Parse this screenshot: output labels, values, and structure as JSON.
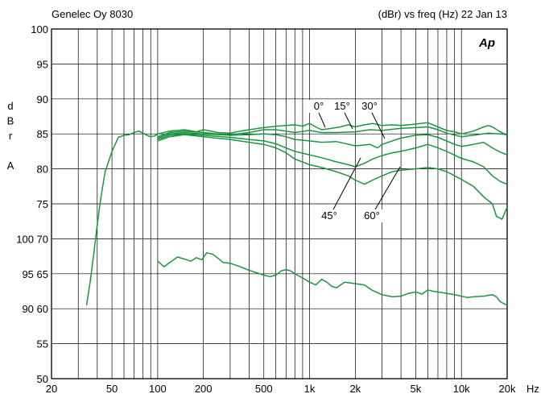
{
  "header": {
    "left_title": "Genelec Oy 8030",
    "right_title": "(dBr) vs freq (Hz) 22 Jan 13",
    "logo": "Ap"
  },
  "chart_data": {
    "type": "line",
    "x_scale": "log",
    "xlim": [
      20,
      20000
    ],
    "ylim": [
      50,
      100
    ],
    "grid": true,
    "x_ticks": [
      {
        "value": 20,
        "label": "20"
      },
      {
        "value": 50,
        "label": "50"
      },
      {
        "value": 100,
        "label": "100"
      },
      {
        "value": 200,
        "label": "200"
      },
      {
        "value": 500,
        "label": "500"
      },
      {
        "value": 1000,
        "label": "1k"
      },
      {
        "value": 2000,
        "label": "2k"
      },
      {
        "value": 5000,
        "label": "5k"
      },
      {
        "value": 10000,
        "label": "10k"
      },
      {
        "value": 20000,
        "label": "20k"
      }
    ],
    "x_unit": "Hz",
    "y_ticks": [
      {
        "value": 100,
        "label": "100"
      },
      {
        "value": 95,
        "label": "95"
      },
      {
        "value": 90,
        "label": "90"
      },
      {
        "value": 85,
        "label": "85"
      },
      {
        "value": 80,
        "label": "80"
      },
      {
        "value": 75,
        "label": "75"
      },
      {
        "value": 70,
        "label": "100 70"
      },
      {
        "value": 65,
        "label": "95  65"
      },
      {
        "value": 60,
        "label": "90  60"
      },
      {
        "value": 55,
        "label": "55"
      },
      {
        "value": 50,
        "label": "50"
      }
    ],
    "ylabel_chars": [
      "d",
      "B",
      "r",
      "",
      "A"
    ],
    "line_color": "#1a9641",
    "series": [
      {
        "name": "0°",
        "points": [
          [
            34,
            60.5
          ],
          [
            36,
            64
          ],
          [
            38,
            68
          ],
          [
            40,
            72
          ],
          [
            42,
            75.5
          ],
          [
            45,
            79.5
          ],
          [
            50,
            82.5
          ],
          [
            55,
            84.5
          ],
          [
            60,
            84.8
          ],
          [
            65,
            84.9
          ],
          [
            70,
            85.2
          ],
          [
            75,
            85.4
          ],
          [
            80,
            85.1
          ],
          [
            85,
            84.8
          ],
          [
            90,
            84.6
          ],
          [
            95,
            84.7
          ],
          [
            100,
            85
          ],
          [
            120,
            85.4
          ],
          [
            150,
            85.6
          ],
          [
            180,
            85.3
          ],
          [
            200,
            85.6
          ],
          [
            250,
            85.2
          ],
          [
            300,
            85.1
          ],
          [
            350,
            85.4
          ],
          [
            400,
            85.6
          ],
          [
            500,
            85.9
          ],
          [
            600,
            86.1
          ],
          [
            700,
            86.2
          ],
          [
            800,
            86.3
          ],
          [
            900,
            86.1
          ],
          [
            1000,
            86.5
          ],
          [
            1100,
            86
          ],
          [
            1200,
            85.6
          ],
          [
            1400,
            85.8
          ],
          [
            1600,
            86
          ],
          [
            1800,
            86.3
          ],
          [
            2000,
            86
          ],
          [
            2300,
            86.3
          ],
          [
            2600,
            86.5
          ],
          [
            3000,
            86.2
          ],
          [
            3500,
            86.3
          ],
          [
            4000,
            86.2
          ],
          [
            5000,
            86.4
          ],
          [
            6000,
            86.6
          ],
          [
            7000,
            86
          ],
          [
            8000,
            85.5
          ],
          [
            9000,
            85.3
          ],
          [
            10000,
            85
          ],
          [
            12000,
            85.4
          ],
          [
            14000,
            86
          ],
          [
            15000,
            86.2
          ],
          [
            16000,
            86
          ],
          [
            18000,
            85.3
          ],
          [
            20000,
            84.8
          ]
        ]
      },
      {
        "name": "15°",
        "points": [
          [
            100,
            84.6
          ],
          [
            120,
            85.2
          ],
          [
            150,
            85.4
          ],
          [
            200,
            85.2
          ],
          [
            250,
            85
          ],
          [
            300,
            84.9
          ],
          [
            400,
            85.2
          ],
          [
            500,
            85.6
          ],
          [
            600,
            85.6
          ],
          [
            700,
            85.4
          ],
          [
            800,
            85.2
          ],
          [
            1000,
            85.5
          ],
          [
            1200,
            85.2
          ],
          [
            1500,
            85.2
          ],
          [
            2000,
            85.3
          ],
          [
            2500,
            85.6
          ],
          [
            3000,
            85.5
          ],
          [
            4000,
            85.8
          ],
          [
            5000,
            85.9
          ],
          [
            6000,
            86
          ],
          [
            7000,
            85.6
          ],
          [
            8000,
            85.1
          ],
          [
            10000,
            84.6
          ],
          [
            12000,
            84.8
          ],
          [
            15000,
            85.1
          ],
          [
            18000,
            85
          ],
          [
            20000,
            84.9
          ]
        ]
      },
      {
        "name": "30°",
        "points": [
          [
            100,
            84.4
          ],
          [
            120,
            85
          ],
          [
            150,
            85.2
          ],
          [
            200,
            85
          ],
          [
            300,
            84.8
          ],
          [
            400,
            84.9
          ],
          [
            500,
            85
          ],
          [
            600,
            84.9
          ],
          [
            700,
            84.6
          ],
          [
            800,
            84.2
          ],
          [
            1000,
            84
          ],
          [
            1200,
            83.8
          ],
          [
            1500,
            83.9
          ],
          [
            2000,
            83.3
          ],
          [
            2500,
            83.5
          ],
          [
            2800,
            83
          ],
          [
            3000,
            83.5
          ],
          [
            3500,
            84
          ],
          [
            4000,
            84.4
          ],
          [
            5000,
            84.8
          ],
          [
            6000,
            84.9
          ],
          [
            7000,
            84.5
          ],
          [
            8000,
            84
          ],
          [
            9000,
            83.5
          ],
          [
            10000,
            83.2
          ],
          [
            12000,
            83.5
          ],
          [
            14000,
            83.8
          ],
          [
            16000,
            83
          ],
          [
            18000,
            82.4
          ],
          [
            20000,
            82
          ]
        ]
      },
      {
        "name": "45°",
        "points": [
          [
            100,
            84.2
          ],
          [
            120,
            84.8
          ],
          [
            150,
            85
          ],
          [
            200,
            84.8
          ],
          [
            300,
            84.5
          ],
          [
            400,
            84.2
          ],
          [
            500,
            84
          ],
          [
            600,
            83.6
          ],
          [
            700,
            83
          ],
          [
            800,
            82.5
          ],
          [
            1000,
            82
          ],
          [
            1200,
            81.6
          ],
          [
            1500,
            81
          ],
          [
            1800,
            80.6
          ],
          [
            2000,
            80.3
          ],
          [
            2300,
            80.8
          ],
          [
            2600,
            81.4
          ],
          [
            3000,
            81.9
          ],
          [
            3500,
            82.3
          ],
          [
            4000,
            82.5
          ],
          [
            5000,
            83
          ],
          [
            6000,
            83.5
          ],
          [
            7000,
            83
          ],
          [
            8000,
            82.5
          ],
          [
            10000,
            81.5
          ],
          [
            12000,
            81
          ],
          [
            14000,
            80.3
          ],
          [
            16000,
            79
          ],
          [
            18000,
            78.2
          ],
          [
            20000,
            77.8
          ]
        ]
      },
      {
        "name": "60°",
        "points": [
          [
            100,
            84
          ],
          [
            120,
            84.6
          ],
          [
            150,
            84.9
          ],
          [
            200,
            84.6
          ],
          [
            300,
            84.2
          ],
          [
            400,
            83.8
          ],
          [
            500,
            83.5
          ],
          [
            600,
            83
          ],
          [
            700,
            82.3
          ],
          [
            800,
            81.4
          ],
          [
            1000,
            80.6
          ],
          [
            1200,
            80.2
          ],
          [
            1500,
            79.6
          ],
          [
            1800,
            79
          ],
          [
            2000,
            78.4
          ],
          [
            2300,
            77.8
          ],
          [
            2600,
            78.4
          ],
          [
            3000,
            79
          ],
          [
            3500,
            79.6
          ],
          [
            4000,
            79.8
          ],
          [
            5000,
            80
          ],
          [
            6000,
            80.2
          ],
          [
            7000,
            80
          ],
          [
            8000,
            79.6
          ],
          [
            10000,
            78.5
          ],
          [
            12000,
            77.5
          ],
          [
            14000,
            76
          ],
          [
            16000,
            75
          ],
          [
            17000,
            73.2
          ],
          [
            18500,
            72.8
          ],
          [
            20000,
            74.5
          ]
        ]
      },
      {
        "name": "",
        "points": [
          [
            100,
            66.8
          ],
          [
            110,
            66
          ],
          [
            120,
            66.6
          ],
          [
            135,
            67.4
          ],
          [
            150,
            67.1
          ],
          [
            165,
            66.8
          ],
          [
            180,
            67.3
          ],
          [
            195,
            67
          ],
          [
            210,
            68
          ],
          [
            230,
            67.8
          ],
          [
            250,
            67.2
          ],
          [
            270,
            66.6
          ],
          [
            300,
            66.5
          ],
          [
            350,
            66
          ],
          [
            400,
            65.5
          ],
          [
            500,
            64.8
          ],
          [
            550,
            64.6
          ],
          [
            600,
            64.8
          ],
          [
            650,
            65.4
          ],
          [
            700,
            65.6
          ],
          [
            750,
            65.4
          ],
          [
            800,
            65
          ],
          [
            900,
            64.4
          ],
          [
            1000,
            63.8
          ],
          [
            1100,
            63.4
          ],
          [
            1200,
            64.2
          ],
          [
            1300,
            63.8
          ],
          [
            1400,
            63.2
          ],
          [
            1500,
            63
          ],
          [
            1700,
            63.8
          ],
          [
            2000,
            63.6
          ],
          [
            2300,
            63.4
          ],
          [
            2600,
            62.6
          ],
          [
            3000,
            62
          ],
          [
            3500,
            61.7
          ],
          [
            4000,
            61.8
          ],
          [
            4500,
            62.2
          ],
          [
            5000,
            62.4
          ],
          [
            5500,
            62.1
          ],
          [
            6000,
            62.7
          ],
          [
            6500,
            62.5
          ],
          [
            7000,
            62.4
          ],
          [
            8000,
            62.2
          ],
          [
            9000,
            62
          ],
          [
            10000,
            61.8
          ],
          [
            11000,
            61.6
          ],
          [
            12000,
            61.7
          ],
          [
            14000,
            61.8
          ],
          [
            16000,
            62
          ],
          [
            17000,
            61.7
          ],
          [
            18000,
            61
          ],
          [
            20000,
            60.5
          ]
        ]
      }
    ],
    "annotations": [
      {
        "text": "0°"
      },
      {
        "text": "15°"
      },
      {
        "text": "30°"
      },
      {
        "text": "45°"
      },
      {
        "text": "60°"
      }
    ]
  }
}
